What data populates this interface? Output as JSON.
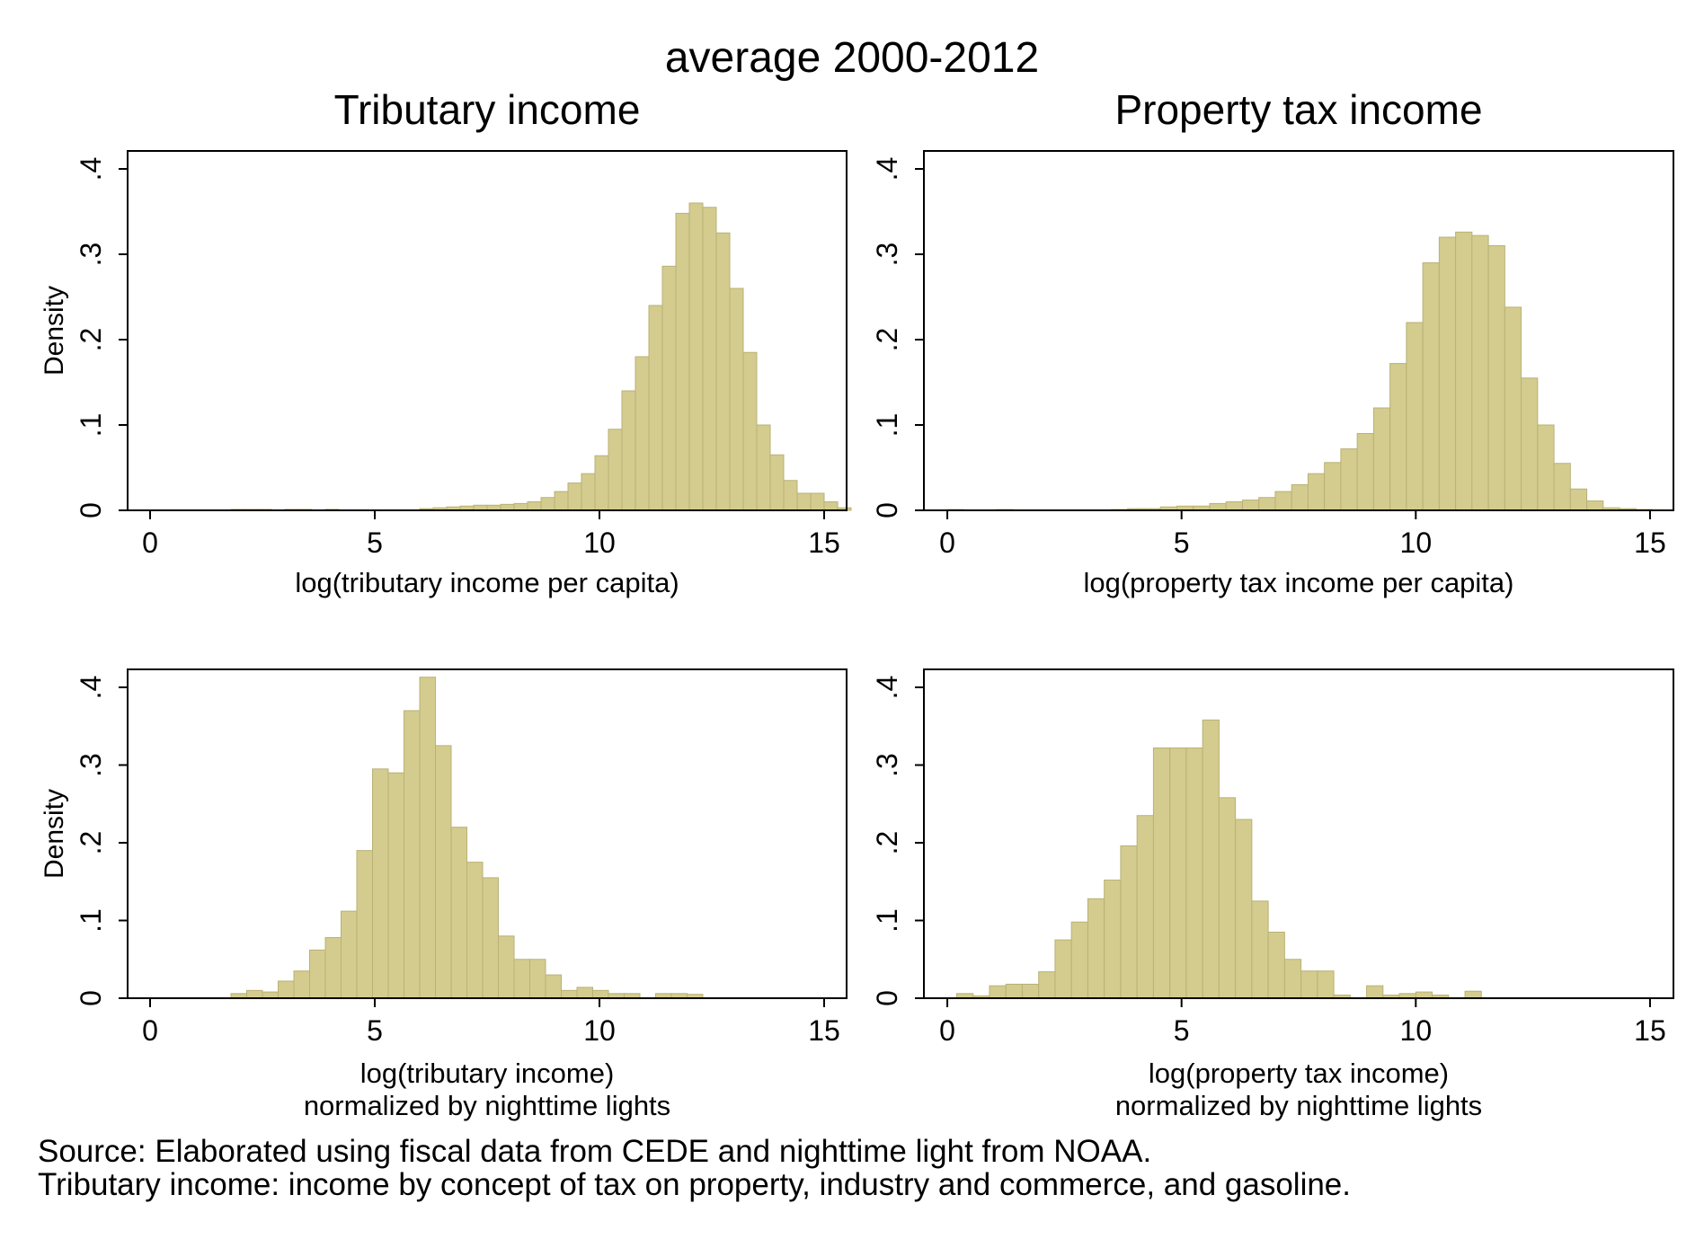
{
  "figure": {
    "title": "average 2000-2012",
    "notes": [
      "Source: Elaborated using fiscal data from CEDE and nighttime light from NOAA.",
      "Tributary income: income by concept of tax on property, industry and commerce, and gasoline."
    ]
  },
  "colors": {
    "bar_fill": "#d3cc8e",
    "bar_stroke": "#b9b177",
    "frame": "#000000",
    "background": "#ffffff"
  },
  "chart_data": [
    {
      "type": "bar",
      "title": "Tributary income",
      "xlabel": [
        "log(tributary income per capita)"
      ],
      "ylabel": "Density",
      "xlim": [
        -0.5,
        15.5
      ],
      "ylim": [
        0,
        0.4
      ],
      "xticks": [
        0,
        5,
        10,
        15
      ],
      "yticks": [
        0,
        0.1,
        0.2,
        0.3,
        0.4
      ],
      "ytick_labels": [
        "0",
        ".1",
        ".2",
        ".3",
        ".4"
      ],
      "grid": false,
      "bin_start": 0.0,
      "bin_width": 0.3,
      "values": [
        0.0005,
        0.0005,
        0.0005,
        0.0005,
        0.0005,
        0.0005,
        0.0012,
        0.0012,
        0.0012,
        0.0005,
        0.0012,
        0.0012,
        0.0005,
        0.0012,
        0.0005,
        0.0005,
        0.0005,
        0.0005,
        0.0005,
        0.0005,
        0.002,
        0.003,
        0.004,
        0.005,
        0.006,
        0.006,
        0.007,
        0.008,
        0.01,
        0.015,
        0.022,
        0.032,
        0.043,
        0.064,
        0.095,
        0.14,
        0.18,
        0.24,
        0.286,
        0.348,
        0.36,
        0.355,
        0.325,
        0.26,
        0.185,
        0.1,
        0.065,
        0.035,
        0.02,
        0.02,
        0.01,
        0.003
      ]
    },
    {
      "type": "bar",
      "title": "Property tax income",
      "xlabel": [
        "log(property tax income per capita)"
      ],
      "ylabel": "",
      "xlim": [
        -0.5,
        15.5
      ],
      "ylim": [
        0,
        0.4
      ],
      "xticks": [
        0,
        5,
        10,
        15
      ],
      "yticks": [
        0,
        0.1,
        0.2,
        0.3,
        0.4
      ],
      "ytick_labels": [
        "0",
        ".1",
        ".2",
        ".3",
        ".4"
      ],
      "grid": false,
      "bin_start": 0.0,
      "bin_width": 0.35,
      "values": [
        0.001,
        0.0005,
        0.0005,
        0.001,
        0.0005,
        0.0005,
        0.0005,
        0.0005,
        0.0005,
        0.0005,
        0.001,
        0.002,
        0.002,
        0.004,
        0.005,
        0.005,
        0.008,
        0.01,
        0.012,
        0.015,
        0.022,
        0.03,
        0.043,
        0.056,
        0.072,
        0.09,
        0.12,
        0.172,
        0.22,
        0.29,
        0.32,
        0.326,
        0.322,
        0.31,
        0.238,
        0.155,
        0.1,
        0.055,
        0.025,
        0.011,
        0.003,
        0.002,
        0.001
      ]
    },
    {
      "type": "bar",
      "title": "",
      "xlabel": [
        "log(tributary income)",
        "normalized by nighttime lights"
      ],
      "ylabel": "Density",
      "xlim": [
        -0.5,
        15.5
      ],
      "ylim": [
        0,
        0.4
      ],
      "xticks": [
        0,
        5,
        10,
        15
      ],
      "yticks": [
        0,
        0.1,
        0.2,
        0.3,
        0.4
      ],
      "ytick_labels": [
        "0",
        ".1",
        ".2",
        ".3",
        ".4"
      ],
      "grid": false,
      "bin_start": 1.8,
      "bin_width": 0.35,
      "values": [
        0.006,
        0.01,
        0.008,
        0.022,
        0.035,
        0.062,
        0.078,
        0.112,
        0.19,
        0.295,
        0.29,
        0.37,
        0.413,
        0.325,
        0.22,
        0.175,
        0.155,
        0.08,
        0.05,
        0.05,
        0.03,
        0.01,
        0.014,
        0.01,
        0.006,
        0.006,
        0.0005,
        0.006,
        0.006,
        0.005
      ]
    },
    {
      "type": "bar",
      "title": "",
      "xlabel": [
        "log(property tax income)",
        "normalized by nighttime lights"
      ],
      "ylabel": "",
      "xlim": [
        -0.5,
        15.5
      ],
      "ylim": [
        0,
        0.4
      ],
      "xticks": [
        0,
        5,
        10,
        15
      ],
      "yticks": [
        0,
        0.1,
        0.2,
        0.3,
        0.4
      ],
      "ytick_labels": [
        "0",
        ".1",
        ".2",
        ".3",
        ".4"
      ],
      "grid": false,
      "bin_start": 0.2,
      "bin_width": 0.35,
      "values": [
        0.006,
        0.003,
        0.016,
        0.018,
        0.018,
        0.034,
        0.075,
        0.098,
        0.128,
        0.152,
        0.196,
        0.235,
        0.322,
        0.322,
        0.322,
        0.358,
        0.258,
        0.23,
        0.125,
        0.085,
        0.05,
        0.035,
        0.035,
        0.004,
        0.0005,
        0.016,
        0.004,
        0.006,
        0.008,
        0.004,
        0.0005,
        0.009
      ]
    }
  ]
}
